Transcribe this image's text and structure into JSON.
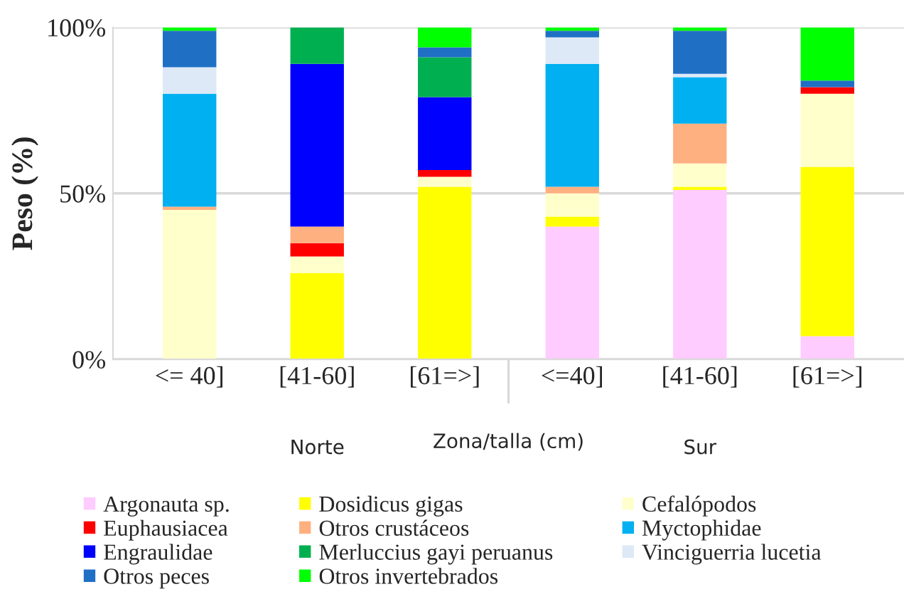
{
  "chart_data": {
    "type": "bar",
    "stacked": true,
    "xlabel": "Zona/talla (cm)",
    "ylabel": "Peso (%)",
    "categories": [
      "<= 40]",
      "[41-60]",
      "[61=>]",
      "<=40]",
      "[41-60]",
      "[61=>]"
    ],
    "annotations": [
      "Norte",
      "Sur"
    ],
    "ylim": [
      0,
      100
    ],
    "yticks": [
      {
        "value": 0,
        "label": "0%"
      },
      {
        "value": 50,
        "label": "50%"
      },
      {
        "value": 100,
        "label": "100%"
      }
    ],
    "grid": "y",
    "legend": "bottom",
    "series": [
      {
        "name": "Argonauta sp.",
        "color": "#ffccff",
        "values": [
          0,
          0,
          0,
          40,
          51,
          7
        ]
      },
      {
        "name": "Dosidicus gigas",
        "color": "#ffff00",
        "values": [
          0,
          26,
          52,
          3,
          1,
          51
        ]
      },
      {
        "name": "Cefalópodos",
        "color": "#ffffcc",
        "values": [
          45,
          5,
          3,
          7,
          7,
          22
        ]
      },
      {
        "name": "Euphausiacea",
        "color": "#ff0000",
        "values": [
          0,
          4,
          2,
          0,
          0,
          2
        ]
      },
      {
        "name": "Otros crustáceos",
        "color": "#ffb080",
        "values": [
          1,
          5,
          0,
          2,
          12,
          0
        ]
      },
      {
        "name": "Myctophidae",
        "color": "#00b0f0",
        "values": [
          34,
          0,
          0,
          37,
          14,
          0
        ]
      },
      {
        "name": "Engraulidae",
        "color": "#0000ff",
        "values": [
          0,
          49,
          22,
          0,
          0,
          0
        ]
      },
      {
        "name": "Merluccius gayi peruanus",
        "color": "#00b050",
        "values": [
          0,
          11,
          12,
          0,
          0,
          0
        ]
      },
      {
        "name": "Vinciguerria lucetia",
        "color": "#dde9f7",
        "values": [
          8,
          0,
          0,
          8,
          1,
          0
        ]
      },
      {
        "name": "Otros peces",
        "color": "#1f6fc5",
        "values": [
          11,
          0,
          3,
          2,
          13,
          2
        ]
      },
      {
        "name": "Otros invertebrados",
        "color": "#00ff00",
        "values": [
          1,
          0,
          6,
          1,
          1,
          16
        ]
      }
    ]
  }
}
